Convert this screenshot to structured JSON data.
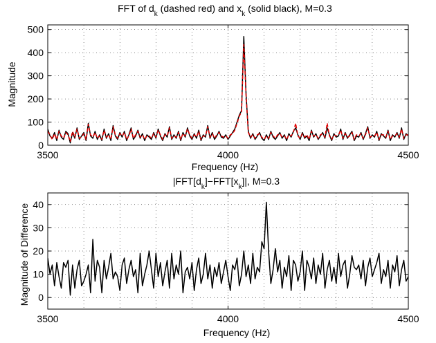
{
  "charts": [
    {
      "title": "FFT of d_k (dashed red) and x_k (solid black), M=0.3",
      "title_parts": [
        "FFT of d",
        "k",
        " (dashed red) and x",
        "k",
        " (solid black), M=0.3"
      ],
      "xlabel": "Frequency (Hz)",
      "ylabel": "Magnitude",
      "xlim": [
        3500,
        4500
      ],
      "ylim": [
        0,
        520
      ],
      "xticks": [
        "3500",
        "4000",
        "4500"
      ],
      "yticks": [
        "0",
        "100",
        "200",
        "300",
        "400",
        "500"
      ],
      "grid": "dotted"
    },
    {
      "title": "|FFT[d_k]−FFT[x_k]|, M=0.3",
      "title_parts": [
        "|FFT[d",
        "k",
        "]−FFT[x",
        "k",
        "]|, M=0.3"
      ],
      "xlabel": "Frequency (Hz)",
      "ylabel": "Magnitude of Difference",
      "xlim": [
        3500,
        4500
      ],
      "ylim": [
        -5,
        45
      ],
      "xticks": [
        "3500",
        "4000",
        "4500"
      ],
      "yticks": [
        "0",
        "10",
        "20",
        "30",
        "40"
      ],
      "grid": "dotted"
    }
  ],
  "chart_data": [
    {
      "type": "line",
      "title": "FFT of d_k (dashed red) and x_k (solid black), M=0.3",
      "xlabel": "Frequency (Hz)",
      "ylabel": "Magnitude",
      "xlim": [
        3500,
        4500
      ],
      "ylim": [
        0,
        520
      ],
      "x_step_hz": 6.25,
      "series": [
        {
          "style": "solid",
          "color": "#000000",
          "values": [
            70,
            40,
            30,
            55,
            20,
            65,
            35,
            25,
            60,
            50,
            10,
            55,
            30,
            75,
            25,
            40,
            55,
            20,
            95,
            40,
            30,
            60,
            25,
            45,
            20,
            70,
            30,
            50,
            20,
            85,
            40,
            25,
            55,
            35,
            60,
            20,
            45,
            75,
            25,
            40,
            65,
            30,
            50,
            20,
            45,
            35,
            25,
            55,
            30,
            70,
            40,
            20,
            50,
            35,
            80,
            25,
            45,
            30,
            60,
            20,
            55,
            35,
            75,
            40,
            25,
            50,
            30,
            65,
            20,
            45,
            35,
            85,
            30,
            55,
            25,
            40,
            60,
            35,
            30,
            45,
            25,
            40,
            55,
            70,
            100,
            130,
            150,
            470,
            220,
            60,
            30,
            50,
            25,
            40,
            55,
            30,
            20,
            45,
            25,
            60,
            35,
            25,
            40,
            55,
            30,
            45,
            20,
            50,
            35,
            60,
            75,
            45,
            25,
            55,
            30,
            40,
            20,
            65,
            35,
            50,
            25,
            40,
            55,
            30,
            75,
            45,
            20,
            50,
            35,
            40,
            70,
            25,
            55,
            30,
            45,
            60,
            20,
            40,
            35,
            55,
            25,
            50,
            80,
            30,
            45,
            35,
            60,
            20,
            50,
            40,
            30,
            65,
            20,
            45,
            35,
            55,
            30,
            75,
            25,
            50,
            40,
            20,
            55,
            35,
            65,
            45,
            25,
            80,
            40,
            60,
            45,
            50,
            45,
            40,
            45,
            25,
            40
          ]
        },
        {
          "style": "dashed",
          "color": "#e00000",
          "values": [
            60,
            45,
            25,
            50,
            25,
            60,
            40,
            30,
            55,
            45,
            15,
            60,
            35,
            70,
            30,
            35,
            50,
            25,
            90,
            45,
            35,
            55,
            30,
            40,
            25,
            65,
            35,
            45,
            25,
            80,
            45,
            30,
            50,
            40,
            55,
            25,
            40,
            70,
            30,
            45,
            60,
            35,
            45,
            25,
            40,
            40,
            30,
            50,
            35,
            65,
            45,
            25,
            45,
            40,
            75,
            30,
            40,
            35,
            55,
            25,
            50,
            40,
            70,
            45,
            30,
            45,
            35,
            60,
            25,
            40,
            40,
            80,
            35,
            50,
            30,
            45,
            55,
            40,
            35,
            40,
            30,
            45,
            50,
            65,
            95,
            125,
            145,
            435,
            215,
            55,
            35,
            45,
            30,
            45,
            50,
            35,
            25,
            40,
            30,
            55,
            40,
            30,
            45,
            50,
            35,
            40,
            25,
            45,
            40,
            55,
            95,
            40,
            30,
            50,
            35,
            45,
            25,
            60,
            40,
            45,
            30,
            45,
            50,
            35,
            95,
            40,
            25,
            45,
            40,
            45,
            65,
            30,
            50,
            35,
            40,
            55,
            25,
            45,
            40,
            50,
            30,
            45,
            75,
            35,
            40,
            40,
            55,
            25,
            45,
            45,
            35,
            60,
            25,
            40,
            40,
            50,
            35,
            70,
            30,
            45,
            45,
            25,
            50,
            40,
            60,
            40,
            30,
            75,
            45,
            55,
            40,
            45,
            40,
            35,
            40,
            30,
            35
          ]
        }
      ]
    },
    {
      "type": "line",
      "title": "|FFT[d_k]−FFT[x_k]|, M=0.3",
      "xlabel": "Frequency (Hz)",
      "ylabel": "Magnitude of Difference",
      "xlim": [
        3500,
        4500
      ],
      "ylim": [
        -5,
        45
      ],
      "x_step_hz": 6.25,
      "series": [
        {
          "style": "solid",
          "color": "#000000",
          "values": [
            17,
            10,
            14,
            5,
            15,
            9,
            4,
            15,
            13,
            16,
            1,
            14,
            4,
            12,
            16,
            5,
            7,
            10,
            14,
            2,
            25,
            7,
            16,
            13,
            2,
            16,
            8,
            13,
            19,
            8,
            11,
            9,
            3,
            14,
            17,
            6,
            12,
            16,
            9,
            12,
            2,
            19,
            5,
            10,
            14,
            20,
            12,
            4,
            19,
            9,
            15,
            5,
            11,
            16,
            4,
            19,
            8,
            14,
            10,
            20,
            2,
            11,
            13,
            8,
            15,
            3,
            12,
            17,
            6,
            10,
            19,
            8,
            14,
            4,
            13,
            9,
            15,
            6,
            11,
            16,
            9,
            3,
            14,
            12,
            17,
            5,
            10,
            20,
            9,
            14,
            6,
            19,
            8,
            13,
            11,
            24,
            21,
            41,
            20,
            6,
            12,
            21,
            11,
            16,
            4,
            13,
            9,
            18,
            3,
            16,
            14,
            7,
            11,
            20,
            3,
            16,
            13,
            8,
            17,
            6,
            14,
            10,
            19,
            4,
            12,
            16,
            7,
            13,
            6,
            19,
            9,
            14,
            16,
            4,
            10,
            18,
            13,
            12,
            14,
            8,
            16,
            5,
            13,
            17,
            9,
            12,
            15,
            19,
            6,
            12,
            9,
            16,
            4,
            14,
            11,
            18,
            5,
            12,
            16,
            7,
            9,
            14,
            5,
            12,
            22,
            6,
            13,
            10,
            19,
            8,
            14,
            12,
            20,
            6,
            15,
            11,
            12,
            9,
            8,
            14,
            6,
            10
          ]
        }
      ]
    }
  ]
}
